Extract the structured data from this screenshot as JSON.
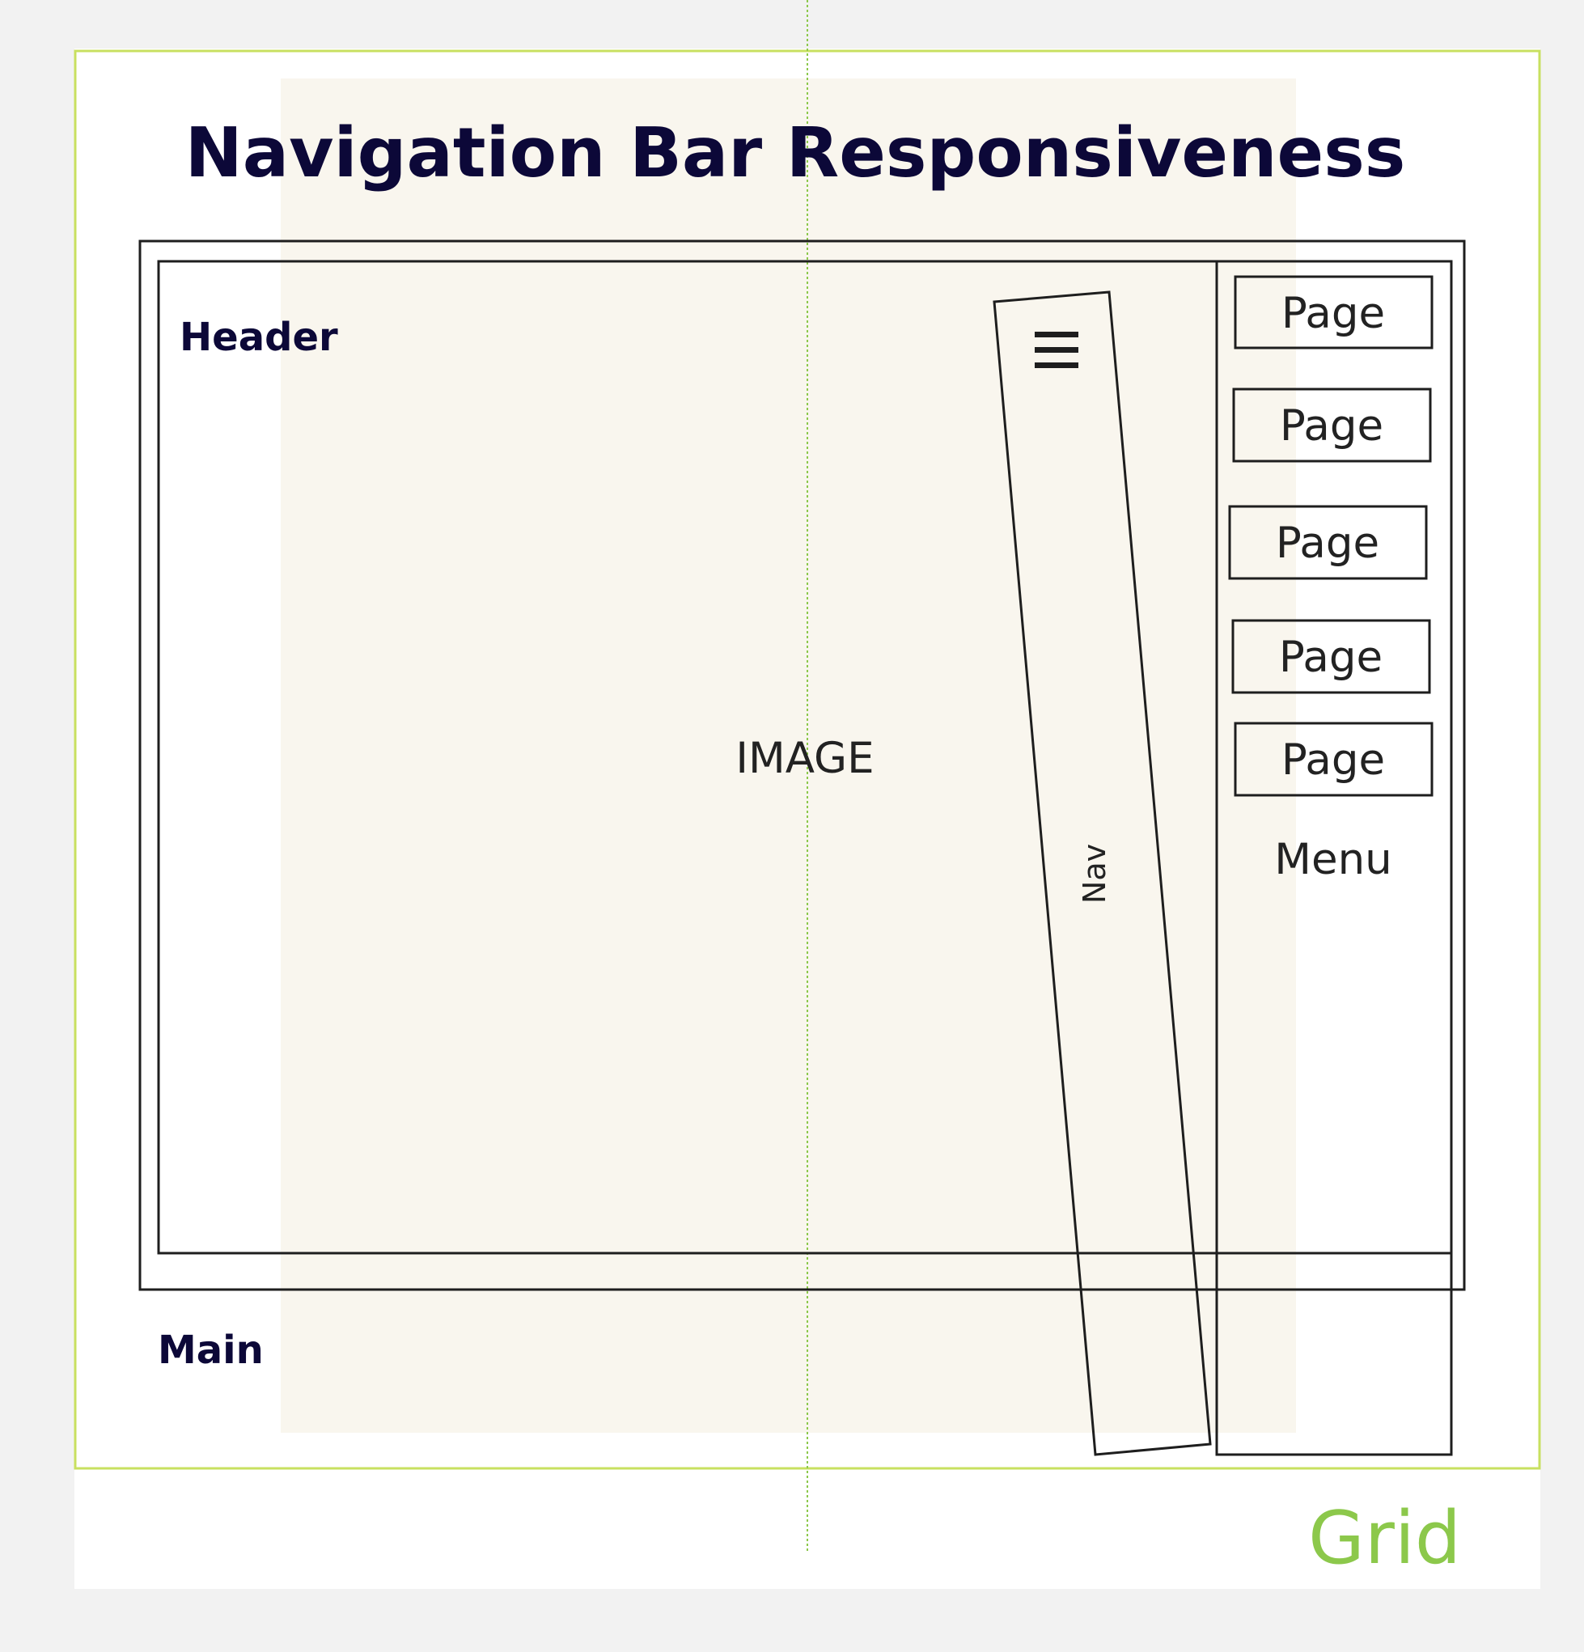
{
  "title": "Navigation Bar Responsiveness",
  "labels": {
    "header": "Header",
    "main": "Main",
    "image": "IMAGE",
    "nav": "Nav",
    "menu": "Menu",
    "grid": "Grid"
  },
  "menu_items": [
    "Page",
    "Page",
    "Page",
    "Page",
    "Page"
  ],
  "icons": {
    "hamburger": "hamburger-menu-icon"
  },
  "colors": {
    "title": "#0c0838",
    "grid_border": "#c8e060",
    "grid_text": "#8cc84b",
    "guide_line": "#8cc84b",
    "column_fill": "#f9f6ee",
    "stroke": "#1e1e1e",
    "page_background": "#f2f2f2"
  }
}
